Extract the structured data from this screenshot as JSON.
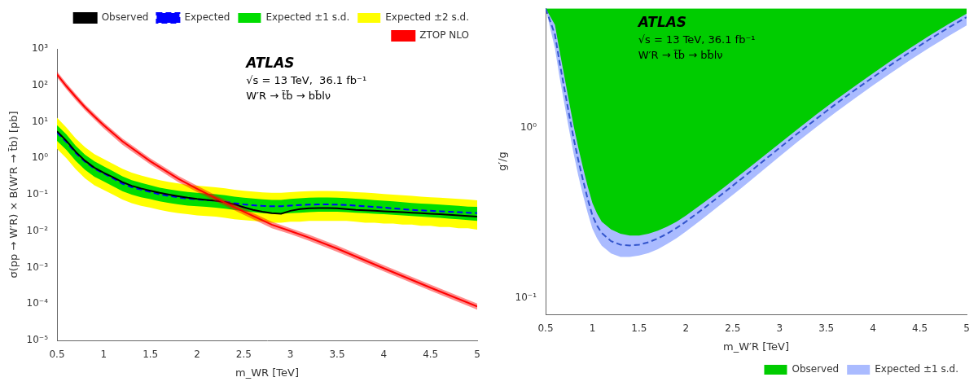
{
  "chart_data": [
    {
      "type": "line",
      "x_label": "m_WR [TeV]",
      "y_label": "σ(pp → W′R) × B(W′R → t̄b) [pb]",
      "annotations": [
        "ATLAS",
        "√s = 13 TeV,  36.1 fb⁻¹",
        "W′R → t̄b̄ → bb̄lν"
      ],
      "log": "y",
      "grid": false,
      "legend": "upper right",
      "xlim": [
        0.5,
        5.0
      ],
      "ylim": [
        1e-05,
        1000
      ],
      "xticks": [
        0.5,
        1,
        1.5,
        2,
        2.5,
        3,
        3.5,
        4,
        4.5,
        5
      ],
      "yticks": [
        {
          "value": 1e-05,
          "label": "10⁻⁵"
        },
        {
          "value": 0.0001,
          "label": "10⁻⁴"
        },
        {
          "value": 0.001,
          "label": "10⁻³"
        },
        {
          "value": 0.01,
          "label": "10⁻²"
        },
        {
          "value": 0.1,
          "label": "10⁻¹"
        },
        {
          "value": 1,
          "label": "10⁰"
        },
        {
          "value": 10,
          "label": "10¹"
        },
        {
          "value": 100,
          "label": "10²"
        },
        {
          "value": 1000,
          "label": "10³"
        }
      ],
      "x": [
        0.5,
        0.6,
        0.7,
        0.8,
        0.9,
        1.0,
        1.1,
        1.2,
        1.3,
        1.4,
        1.5,
        1.6,
        1.7,
        1.8,
        1.9,
        2.0,
        2.1,
        2.2,
        2.3,
        2.4,
        2.5,
        2.6,
        2.7,
        2.8,
        2.9,
        3.0,
        3.1,
        3.2,
        3.3,
        3.4,
        3.5,
        3.6,
        3.7,
        3.8,
        3.9,
        4.0,
        4.1,
        4.2,
        4.3,
        4.4,
        4.5,
        4.6,
        4.7,
        4.8,
        4.9,
        5.0
      ],
      "series": [
        {
          "name": "Observed",
          "type": "line",
          "color": "#000000",
          "values": [
            5.5,
            3.0,
            1.5,
            0.85,
            0.55,
            0.4,
            0.3,
            0.22,
            0.175,
            0.148,
            0.128,
            0.112,
            0.1,
            0.09,
            0.082,
            0.076,
            0.072,
            0.068,
            0.062,
            0.054,
            0.045,
            0.038,
            0.034,
            0.031,
            0.03,
            0.036,
            0.04,
            0.042,
            0.043,
            0.043,
            0.042,
            0.04,
            0.038,
            0.037,
            0.036,
            0.035,
            0.034,
            0.033,
            0.032,
            0.031,
            0.03,
            0.029,
            0.028,
            0.027,
            0.026,
            0.025
          ]
        },
        {
          "name": "Expected",
          "type": "line",
          "color": "#0000ff",
          "line_style": "dashed",
          "values": [
            5.0,
            2.8,
            1.4,
            0.8,
            0.52,
            0.38,
            0.28,
            0.2,
            0.16,
            0.138,
            0.118,
            0.102,
            0.092,
            0.084,
            0.078,
            0.074,
            0.071,
            0.068,
            0.064,
            0.058,
            0.054,
            0.051,
            0.049,
            0.048,
            0.048,
            0.05,
            0.052,
            0.053,
            0.054,
            0.054,
            0.053,
            0.052,
            0.05,
            0.048,
            0.046,
            0.044,
            0.042,
            0.04,
            0.038,
            0.037,
            0.036,
            0.035,
            0.034,
            0.033,
            0.032,
            0.031
          ]
        },
        {
          "name": "Expected ±1 s.d.",
          "type": "band",
          "color": "#00dd00",
          "lower": [
            3.0,
            1.7,
            0.85,
            0.48,
            0.31,
            0.23,
            0.17,
            0.125,
            0.1,
            0.085,
            0.075,
            0.065,
            0.059,
            0.054,
            0.05,
            0.048,
            0.046,
            0.044,
            0.041,
            0.038,
            0.035,
            0.033,
            0.031,
            0.03,
            0.03,
            0.031,
            0.032,
            0.033,
            0.034,
            0.034,
            0.034,
            0.033,
            0.032,
            0.031,
            0.03,
            0.029,
            0.028,
            0.027,
            0.026,
            0.025,
            0.024,
            0.023,
            0.022,
            0.021,
            0.02,
            0.019
          ],
          "upper": [
            8.0,
            4.5,
            2.2,
            1.25,
            0.82,
            0.6,
            0.44,
            0.32,
            0.248,
            0.21,
            0.18,
            0.155,
            0.14,
            0.128,
            0.118,
            0.112,
            0.107,
            0.102,
            0.096,
            0.088,
            0.082,
            0.078,
            0.074,
            0.072,
            0.072,
            0.076,
            0.079,
            0.082,
            0.083,
            0.083,
            0.082,
            0.08,
            0.077,
            0.074,
            0.071,
            0.068,
            0.065,
            0.062,
            0.059,
            0.057,
            0.055,
            0.053,
            0.051,
            0.049,
            0.047,
            0.046
          ]
        },
        {
          "name": "Expected ±2 s.d.",
          "type": "band",
          "color": "#ffff00",
          "lower": [
            1.8,
            1.0,
            0.5,
            0.28,
            0.18,
            0.135,
            0.1,
            0.073,
            0.058,
            0.049,
            0.044,
            0.038,
            0.034,
            0.031,
            0.029,
            0.027,
            0.026,
            0.025,
            0.023,
            0.021,
            0.02,
            0.019,
            0.018,
            0.017,
            0.017,
            0.018,
            0.018,
            0.019,
            0.019,
            0.019,
            0.019,
            0.019,
            0.018,
            0.017,
            0.017,
            0.016,
            0.016,
            0.015,
            0.015,
            0.014,
            0.014,
            0.013,
            0.013,
            0.012,
            0.012,
            0.011
          ],
          "upper": [
            13.0,
            7.0,
            3.5,
            2.0,
            1.3,
            0.95,
            0.7,
            0.51,
            0.4,
            0.335,
            0.288,
            0.248,
            0.222,
            0.202,
            0.186,
            0.176,
            0.167,
            0.159,
            0.149,
            0.136,
            0.128,
            0.121,
            0.115,
            0.112,
            0.112,
            0.116,
            0.121,
            0.124,
            0.126,
            0.126,
            0.124,
            0.121,
            0.116,
            0.113,
            0.109,
            0.104,
            0.1,
            0.096,
            0.092,
            0.088,
            0.085,
            0.082,
            0.079,
            0.076,
            0.073,
            0.07
          ]
        },
        {
          "name": "ZTOP NLO",
          "type": "line",
          "color": "#ff0000",
          "x": [
            0.5,
            0.6,
            0.7,
            0.8,
            0.9,
            1.0,
            1.2,
            1.5,
            1.8,
            2.0,
            2.2,
            2.5,
            2.8,
            3.0,
            3.2,
            3.5,
            4.0,
            4.5,
            5.0
          ],
          "values": [
            200.0,
            95.0,
            48.0,
            25.0,
            14.0,
            8.0,
            2.9,
            0.82,
            0.27,
            0.145,
            0.08,
            0.034,
            0.015,
            0.01,
            0.0066,
            0.0033,
            0.00095,
            0.00028,
            8.5e-05
          ],
          "lower": [
            165.0,
            78.0,
            39.0,
            20.5,
            11.5,
            6.5,
            2.35,
            0.67,
            0.22,
            0.118,
            0.065,
            0.028,
            0.012,
            0.0082,
            0.0054,
            0.0027,
            0.00078,
            0.00023,
            7e-05
          ],
          "upper": [
            240.0,
            115.0,
            58.0,
            30.0,
            17.0,
            9.6,
            3.5,
            0.99,
            0.325,
            0.175,
            0.096,
            0.041,
            0.018,
            0.012,
            0.0079,
            0.004,
            0.00115,
            0.00034,
            0.000102
          ]
        }
      ]
    },
    {
      "type": "line",
      "x_label": "m_W′R [TeV]",
      "y_label": "g′/g",
      "annotations": [
        "ATLAS",
        "√s = 13 TeV, 36.1 fb⁻¹",
        "W′R → t̄b̄ → bb̄lν"
      ],
      "log": "y",
      "grid": false,
      "legend": "lower right",
      "xlim": [
        0.5,
        5.0
      ],
      "ylim": [
        0.08,
        5.0
      ],
      "xticks": [
        0.5,
        1,
        1.5,
        2,
        2.5,
        3,
        3.5,
        4,
        4.5,
        5
      ],
      "yticks": [
        {
          "value": 0.1,
          "label": "10⁻¹"
        },
        {
          "value": 1,
          "label": "10⁰"
        }
      ],
      "x": [
        0.5,
        0.6,
        0.65,
        0.7,
        0.75,
        0.8,
        0.85,
        0.9,
        0.95,
        1.0,
        1.05,
        1.1,
        1.2,
        1.3,
        1.4,
        1.5,
        1.6,
        1.7,
        1.8,
        1.9,
        2.0,
        2.2,
        2.4,
        2.6,
        2.8,
        3.0,
        3.2,
        3.4,
        3.6,
        3.8,
        4.0,
        4.2,
        4.4,
        4.6,
        4.8,
        5.0
      ],
      "series": [
        {
          "name": "Observed",
          "type": "area",
          "color": "#00cc00",
          "values": [
            5.0,
            3.2,
            2.2,
            1.55,
            1.1,
            0.78,
            0.58,
            0.44,
            0.34,
            0.27,
            0.235,
            0.215,
            0.195,
            0.188,
            0.188,
            0.192,
            0.2,
            0.212,
            0.228,
            0.248,
            0.272,
            0.33,
            0.405,
            0.495,
            0.61,
            0.75,
            0.92,
            1.12,
            1.36,
            1.64,
            1.96,
            2.34,
            2.77,
            3.26,
            3.8,
            4.4
          ]
        },
        {
          "name": "Expected ±1 s.d.",
          "type": "band",
          "color": "#aabbff",
          "lower": [
            5.0,
            2.9,
            1.96,
            1.38,
            0.975,
            0.7,
            0.52,
            0.4,
            0.315,
            0.255,
            0.223,
            0.202,
            0.182,
            0.174,
            0.174,
            0.177,
            0.183,
            0.193,
            0.207,
            0.224,
            0.245,
            0.297,
            0.363,
            0.444,
            0.548,
            0.675,
            0.828,
            1.01,
            1.225,
            1.475,
            1.765,
            2.1,
            2.49,
            2.93,
            3.42,
            3.97
          ],
          "upper": [
            5.0,
            4.0,
            2.8,
            2.0,
            1.42,
            1.02,
            0.76,
            0.58,
            0.45,
            0.36,
            0.312,
            0.28,
            0.252,
            0.238,
            0.232,
            0.232,
            0.238,
            0.248,
            0.262,
            0.28,
            0.304,
            0.365,
            0.442,
            0.538,
            0.658,
            0.805,
            0.983,
            1.2,
            1.45,
            1.74,
            2.08,
            2.48,
            2.93,
            3.45,
            4.02,
            4.65
          ]
        },
        {
          "type": "line",
          "color": "#3355cc",
          "line_style": "dashed",
          "values": [
            5.0,
            3.5,
            2.4,
            1.7,
            1.2,
            0.86,
            0.64,
            0.49,
            0.38,
            0.305,
            0.265,
            0.24,
            0.215,
            0.205,
            0.203,
            0.205,
            0.212,
            0.223,
            0.238,
            0.257,
            0.28,
            0.338,
            0.412,
            0.503,
            0.618,
            0.758,
            0.928,
            1.13,
            1.37,
            1.65,
            1.97,
            2.35,
            2.78,
            3.28,
            3.83,
            4.44
          ]
        }
      ]
    }
  ]
}
